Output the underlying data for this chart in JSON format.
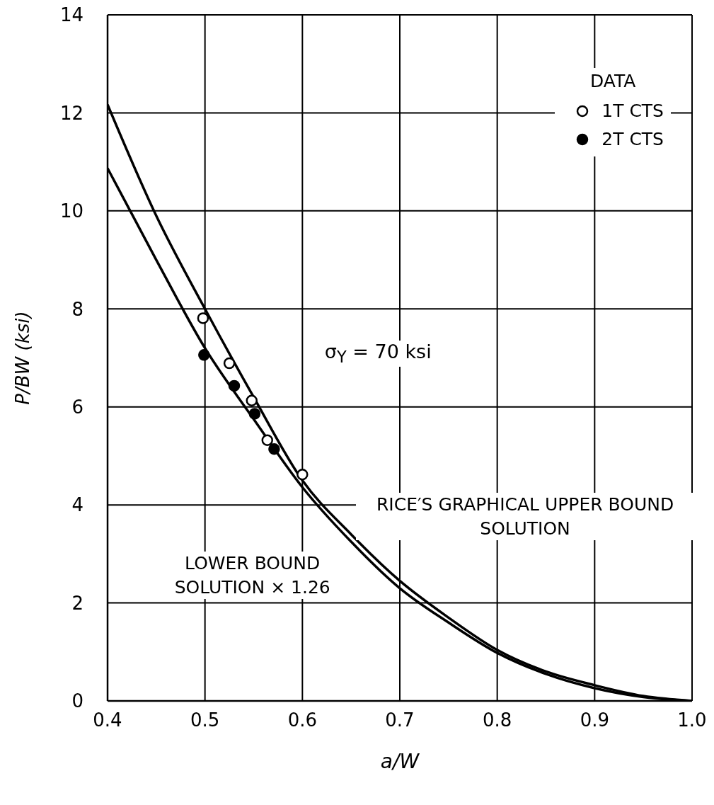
{
  "chart_data": {
    "type": "line",
    "xlabel": "a/W",
    "ylabel": "P/BW  (ksi)",
    "legend_title": "DATA",
    "legend": "top right",
    "grid": true,
    "xlim": [
      0.4,
      1.0
    ],
    "xticks": [
      {
        "value": 0.4,
        "label": "0.4"
      },
      {
        "value": 0.5,
        "label": "0.5"
      },
      {
        "value": 0.6,
        "label": "0.6"
      },
      {
        "value": 0.7,
        "label": "0.7"
      },
      {
        "value": 0.8,
        "label": "0.8"
      },
      {
        "value": 0.9,
        "label": "0.9"
      },
      {
        "value": 1.0,
        "label": "1.0"
      }
    ],
    "ylim": [
      0,
      14
    ],
    "yticks": [
      0,
      2,
      4,
      6,
      8,
      10,
      12,
      14
    ],
    "annotations": [
      "σ$_{Y}$ = 70 ksi"
    ],
    "series": [
      {
        "name": "RICE′S GRAPHICAL UPPER BOUND SOLUTION",
        "marker": "none",
        "color": "#000000",
        "x": [
          0.4,
          0.45,
          0.5,
          0.55,
          0.6,
          0.65,
          0.7,
          0.75,
          0.8,
          0.85,
          0.9,
          0.95,
          1.0
        ],
        "values": [
          12.17,
          9.9,
          8.0,
          6.2,
          4.5,
          3.4,
          2.45,
          1.7,
          1.04,
          0.6,
          0.32,
          0.1,
          0.0
        ]
      },
      {
        "name": "LOWER BOUND SOLUTION × 1.26",
        "marker": "none",
        "color": "#000000",
        "x": [
          0.4,
          0.45,
          0.5,
          0.55,
          0.6,
          0.65,
          0.7,
          0.75,
          0.8,
          0.85,
          0.9,
          0.95,
          1.0
        ],
        "values": [
          10.87,
          9.0,
          7.2,
          5.75,
          4.36,
          3.25,
          2.3,
          1.6,
          0.98,
          0.55,
          0.26,
          0.08,
          0.0
        ]
      },
      {
        "name": "1T CTS",
        "type": "scatter",
        "marker": "circle",
        "color": "#ffffff",
        "x": [
          0.498,
          0.525,
          0.548,
          0.564,
          0.6
        ],
        "values": [
          7.81,
          6.89,
          6.13,
          5.32,
          4.62
        ]
      },
      {
        "name": "2T CTS",
        "type": "scatter",
        "marker": "circle",
        "color": "#000000",
        "x": [
          0.499,
          0.53,
          0.551,
          0.571
        ],
        "values": [
          7.06,
          6.43,
          5.86,
          5.14
        ]
      }
    ]
  }
}
